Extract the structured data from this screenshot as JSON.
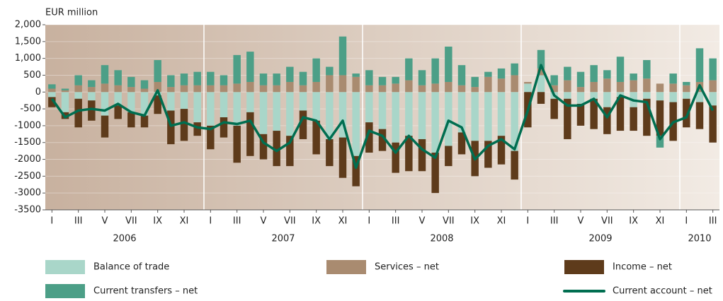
{
  "chart_data": {
    "type": "bar",
    "stacked": true,
    "y_axis_label": "EUR million",
    "categories": [
      "I",
      null,
      "III",
      null,
      "V",
      null,
      "VII",
      null,
      "IX",
      null,
      "XI",
      null,
      "I",
      null,
      "III",
      null,
      "V",
      null,
      "VII",
      null,
      "IX",
      null,
      "XI",
      null,
      "I",
      null,
      "III",
      null,
      "V",
      null,
      "VII",
      null,
      "IX",
      null,
      "XI",
      null,
      "I",
      null,
      "III",
      null,
      "V",
      null,
      "VII",
      null,
      "IX",
      null,
      "XI",
      null,
      "I",
      null,
      "III"
    ],
    "groups": [
      {
        "label": "2006",
        "count": 12
      },
      {
        "label": "2007",
        "count": 12
      },
      {
        "label": "2008",
        "count": 12
      },
      {
        "label": "2009",
        "count": 12
      },
      {
        "label": "2010",
        "count": 3
      }
    ],
    "ylim": [
      -3500,
      2000
    ],
    "yticks": [
      -3500,
      -3000,
      -2500,
      -2000,
      -1500,
      -1000,
      -500,
      0,
      500,
      {
        "value": 1000,
        "label": "1,000"
      },
      {
        "value": 1500,
        "label": "1,500"
      },
      {
        "value": 2000,
        "label": "2,000"
      }
    ],
    "grid": true,
    "series": [
      {
        "name": "Balance of trade",
        "color": "#a9d6c9",
        "values": [
          -150,
          -600,
          -200,
          -250,
          -700,
          -400,
          -600,
          -700,
          -100,
          -550,
          -500,
          -900,
          -1000,
          -750,
          -1000,
          -600,
          -1250,
          -1150,
          -1300,
          -550,
          -850,
          -1400,
          -1350,
          -1900,
          -900,
          -1100,
          -1500,
          -1300,
          -1400,
          -1800,
          -1600,
          -1200,
          -1450,
          -1450,
          -1300,
          -1750,
          250,
          500,
          -200,
          -200,
          -350,
          -200,
          -450,
          -150,
          -450,
          -200,
          -250,
          -300,
          -200,
          -300,
          -400
        ]
      },
      {
        "name": "Services – net",
        "color": "#a98b70",
        "values": [
          100,
          50,
          200,
          150,
          250,
          200,
          150,
          100,
          300,
          150,
          200,
          200,
          200,
          200,
          250,
          300,
          200,
          200,
          300,
          200,
          300,
          500,
          500,
          450,
          200,
          200,
          250,
          350,
          200,
          250,
          300,
          200,
          150,
          450,
          400,
          500,
          50,
          200,
          200,
          350,
          150,
          300,
          400,
          300,
          350,
          400,
          250,
          250,
          200,
          300,
          350
        ]
      },
      {
        "name": "Income – net",
        "color": "#5e3b1b",
        "values": [
          -300,
          -200,
          -850,
          -600,
          -650,
          -400,
          -450,
          -350,
          -550,
          -1000,
          -950,
          -400,
          -700,
          -600,
          -1100,
          -1300,
          -750,
          -1050,
          -900,
          -850,
          -1000,
          -800,
          -1200,
          -900,
          -900,
          -650,
          -900,
          -1050,
          -950,
          -1200,
          -600,
          -650,
          -1050,
          -800,
          -850,
          -850,
          -1050,
          -350,
          -600,
          -1200,
          -650,
          -900,
          -800,
          -1000,
          -700,
          -1100,
          -1050,
          -1150,
          -850,
          -800,
          -1100
        ]
      },
      {
        "name": "Current transfers – net",
        "color": "#4c9f87",
        "values": [
          130,
          50,
          300,
          200,
          550,
          450,
          300,
          250,
          650,
          350,
          350,
          400,
          400,
          300,
          850,
          900,
          350,
          350,
          450,
          400,
          700,
          250,
          1150,
          100,
          450,
          250,
          200,
          650,
          450,
          750,
          1050,
          600,
          300,
          150,
          300,
          350,
          0,
          550,
          300,
          400,
          450,
          500,
          250,
          750,
          200,
          550,
          -350,
          300,
          100,
          1000,
          650
        ]
      },
      {
        "name": "Current account – net",
        "type": "line",
        "color": "#006e50",
        "values": [
          -200,
          -750,
          -550,
          -500,
          -550,
          -350,
          -600,
          -700,
          50,
          -1000,
          -900,
          -1050,
          -1100,
          -900,
          -950,
          -850,
          -1500,
          -1750,
          -1500,
          -750,
          -850,
          -1400,
          -850,
          -2250,
          -1150,
          -1300,
          -1800,
          -1300,
          -1700,
          -1950,
          -850,
          -1050,
          -2000,
          -1600,
          -1400,
          -1700,
          -550,
          800,
          -100,
          -400,
          -400,
          -200,
          -750,
          -100,
          -250,
          -300,
          -1400,
          -900,
          -750,
          200,
          -550
        ]
      }
    ]
  }
}
